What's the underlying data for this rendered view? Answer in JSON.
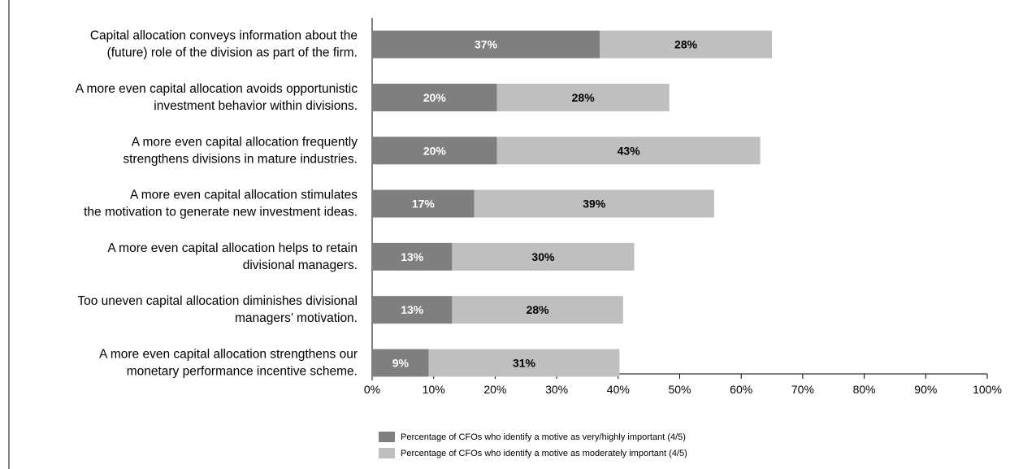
{
  "chart_data": {
    "type": "bar",
    "orientation": "horizontal",
    "stacked": true,
    "categories": [
      [
        "Capital allocation conveys information about the",
        "(future) role of the division as part of the firm."
      ],
      [
        "A more even capital allocation avoids opportunistic",
        "investment behavior within divisions."
      ],
      [
        "A more even capital allocation frequently",
        "strengthens divisions in mature industries."
      ],
      [
        "A more even capital allocation stimulates",
        "the motivation to generate new investment ideas."
      ],
      [
        "A more even capital allocation helps to retain",
        "divisional managers."
      ],
      [
        "Too uneven capital allocation diminishes divisional",
        "managers’ motivation."
      ],
      [
        "A more even capital allocation strengthens our",
        "monetary performance incentive scheme."
      ]
    ],
    "series": [
      {
        "name": "Percentage of CFOs who identify a motive as very/highly important (4/5)",
        "color": "#7f7f7f",
        "label_color": "#ffffff",
        "values": [
          37,
          20.3,
          20.3,
          16.6,
          13,
          13,
          9.2
        ],
        "labels": [
          "37%",
          "20%",
          "20%",
          "17%",
          "13%",
          "13%",
          "9%"
        ]
      },
      {
        "name": "Percentage of CFOs who identify a motive as moderately important (4/5)",
        "color": "#bfbfbf",
        "label_color": "#000000",
        "values": [
          28,
          28,
          42.8,
          39,
          29.6,
          27.8,
          31
        ],
        "labels": [
          "28%",
          "28%",
          "43%",
          "39%",
          "30%",
          "28%",
          "31%"
        ]
      }
    ],
    "xlim": [
      0,
      100
    ],
    "x_ticks": [
      "0%",
      "10%",
      "20%",
      "30%",
      "40%",
      "50%",
      "60%",
      "70%",
      "80%",
      "90%",
      "100%"
    ],
    "grid": false,
    "legend_position": "bottom"
  }
}
